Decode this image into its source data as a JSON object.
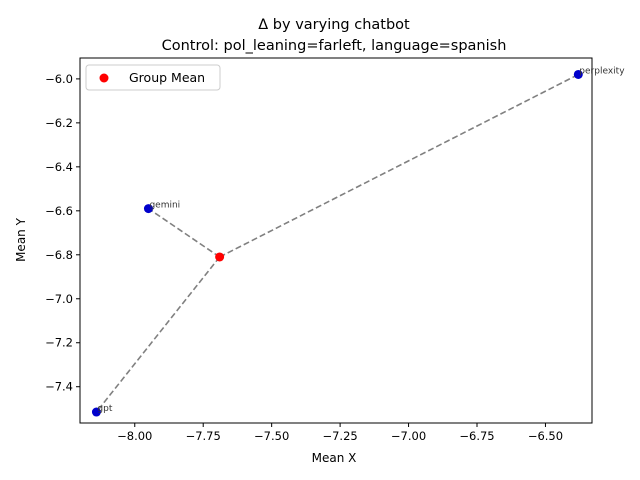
{
  "chart_data": {
    "type": "scatter",
    "title": "Δ by varying chatbot",
    "subtitle": "Control: pol_leaning=farleft, language=spanish",
    "xlabel": "Mean X",
    "ylabel": "Mean Y",
    "xlim": [
      -8.2,
      -6.33
    ],
    "ylim": [
      -7.565,
      -5.905
    ],
    "xticks": [
      -8.0,
      -7.75,
      -7.5,
      -7.25,
      -7.0,
      -6.75,
      -6.5
    ],
    "xtick_labels": [
      "−8.00",
      "−7.75",
      "−7.50",
      "−7.25",
      "−7.00",
      "−6.75",
      "−6.50"
    ],
    "yticks": [
      -6.0,
      -6.2,
      -6.4,
      -6.6,
      -6.8,
      -7.0,
      -7.2,
      -7.4
    ],
    "ytick_labels": [
      "−6.0",
      "−6.2",
      "−6.4",
      "−6.6",
      "−6.8",
      "−7.0",
      "−7.2",
      "−7.4"
    ],
    "points": [
      {
        "label": "gemini",
        "x": -7.95,
        "y": -6.59
      },
      {
        "label": "gpt",
        "x": -8.14,
        "y": -7.515
      },
      {
        "label": "perplexity",
        "x": -6.38,
        "y": -5.98
      }
    ],
    "group_mean": {
      "name": "Group Mean",
      "x": -7.69,
      "y": -6.81
    },
    "grid": false,
    "legend_position": "top-left",
    "colors": {
      "point": "#0000cc",
      "group_mean": "#ff0000",
      "connector": "#808080"
    }
  }
}
